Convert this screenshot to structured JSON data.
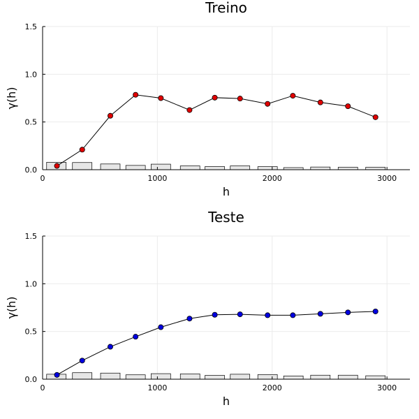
{
  "chart_data": [
    {
      "type": "line",
      "title": "Treino",
      "xlabel": "h",
      "ylabel": "γ(h)",
      "xlim": [
        0,
        3200
      ],
      "ylim": [
        0,
        1.5
      ],
      "xticks": [
        0,
        1000,
        2000,
        3000
      ],
      "xtick_labels": [
        "0",
        "1000",
        "2000",
        "3000"
      ],
      "yticks": [
        0,
        0.5,
        1.0,
        1.5
      ],
      "ytick_labels": [
        "0.0",
        "0.5",
        "1.0",
        "1.5"
      ],
      "grid": true,
      "marker_color": "#e00000",
      "bar_color": "#e6e6e6",
      "series": [
        {
          "x": [
            125,
            345,
            590,
            810,
            1030,
            1280,
            1500,
            1720,
            1960,
            2180,
            2420,
            2660,
            2900
          ],
          "values": [
            0.04,
            0.21,
            0.565,
            0.785,
            0.75,
            0.625,
            0.755,
            0.745,
            0.69,
            0.775,
            0.705,
            0.665,
            0.55
          ]
        }
      ],
      "histogram": {
        "centers": [
          120,
          345,
          590,
          810,
          1030,
          1285,
          1500,
          1720,
          1960,
          2185,
          2420,
          2660,
          2900
        ],
        "values": [
          0.078,
          0.075,
          0.06,
          0.045,
          0.058,
          0.04,
          0.033,
          0.04,
          0.032,
          0.022,
          0.028,
          0.026,
          0.026
        ],
        "width": 170
      }
    },
    {
      "type": "line",
      "title": "Teste",
      "xlabel": "h",
      "ylabel": "γ(h)",
      "xlim": [
        0,
        3200
      ],
      "ylim": [
        0,
        1.5
      ],
      "xticks": [
        0,
        1000,
        2000,
        3000
      ],
      "xtick_labels": [
        "0",
        "1000",
        "2000",
        "3000"
      ],
      "yticks": [
        0,
        0.5,
        1.0,
        1.5
      ],
      "ytick_labels": [
        "0.0",
        "0.5",
        "1.0",
        "1.5"
      ],
      "grid": true,
      "marker_color": "#0000e0",
      "bar_color": "#e6e6e6",
      "series": [
        {
          "x": [
            125,
            345,
            590,
            810,
            1030,
            1280,
            1500,
            1720,
            1960,
            2180,
            2420,
            2660,
            2900
          ],
          "values": [
            0.045,
            0.195,
            0.34,
            0.445,
            0.545,
            0.635,
            0.675,
            0.68,
            0.67,
            0.67,
            0.685,
            0.7,
            0.71
          ]
        }
      ],
      "histogram": {
        "centers": [
          120,
          345,
          590,
          810,
          1030,
          1285,
          1500,
          1720,
          1960,
          2185,
          2420,
          2660,
          2900
        ],
        "values": [
          0.052,
          0.068,
          0.064,
          0.046,
          0.058,
          0.056,
          0.04,
          0.052,
          0.048,
          0.034,
          0.042,
          0.042,
          0.036
        ],
        "width": 170
      }
    }
  ]
}
